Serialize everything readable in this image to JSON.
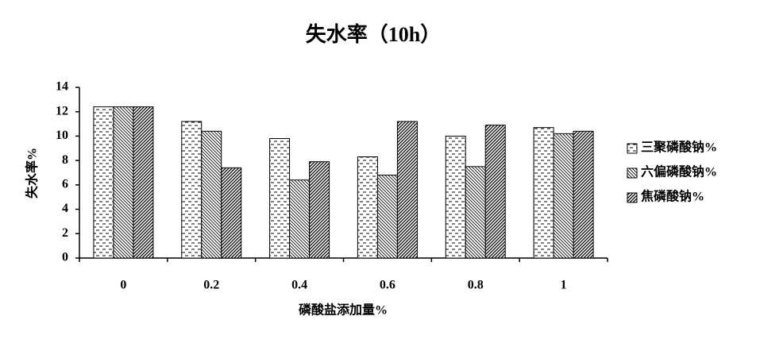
{
  "chart_data": {
    "type": "bar",
    "title": "失水率（10h）",
    "x_label": "磷酸盐添加量%",
    "y_label": "失水率%",
    "categories": [
      "0",
      "0.2",
      "0.4",
      "0.6",
      "0.8",
      "1"
    ],
    "series": [
      {
        "name": "三聚磷酸钠%",
        "values": [
          12.4,
          11.2,
          9.8,
          8.3,
          10.0,
          10.7
        ]
      },
      {
        "name": "六偏磷酸钠%",
        "values": [
          12.4,
          10.4,
          6.4,
          6.8,
          7.5,
          10.2
        ]
      },
      {
        "name": "焦磷酸钠%",
        "values": [
          12.4,
          7.4,
          7.9,
          11.2,
          10.9,
          10.4
        ]
      }
    ],
    "ylim": [
      0,
      14
    ],
    "yticks": [
      0,
      2,
      4,
      6,
      8,
      10,
      12,
      14
    ],
    "grid": false,
    "legend": "right"
  }
}
